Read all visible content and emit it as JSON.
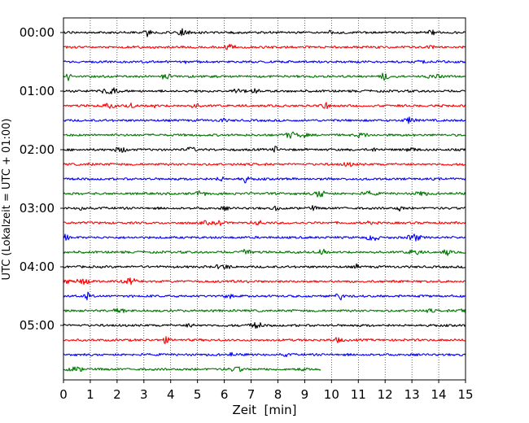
{
  "chart_data": {
    "type": "line",
    "title": "",
    "xlabel": "Zeit  [min]",
    "ylabel": "UTC (Lokalzeit = UTC + 01:00)",
    "xlim": [
      0,
      15
    ],
    "x_ticks": [
      0,
      1,
      2,
      3,
      4,
      5,
      6,
      7,
      8,
      9,
      10,
      11,
      12,
      13,
      14,
      15
    ],
    "x_tick_labels": [
      "0",
      "1",
      "2",
      "3",
      "4",
      "5",
      "6",
      "7",
      "8",
      "9",
      "10",
      "11",
      "12",
      "13",
      "14",
      "15"
    ],
    "y_tick_labels": [
      "00:00",
      "01:00",
      "02:00",
      "03:00",
      "04:00",
      "05:00"
    ],
    "y_tick_rows": [
      0,
      4,
      8,
      12,
      16,
      20
    ],
    "minutes_per_row": 15,
    "row_count": 24,
    "last_row_end_minute": 9.6,
    "trace_colors": [
      "#000000",
      "#ff0000",
      "#0000ff",
      "#007700"
    ],
    "grid": "vertical dotted lines at each minute",
    "legend": "none"
  }
}
